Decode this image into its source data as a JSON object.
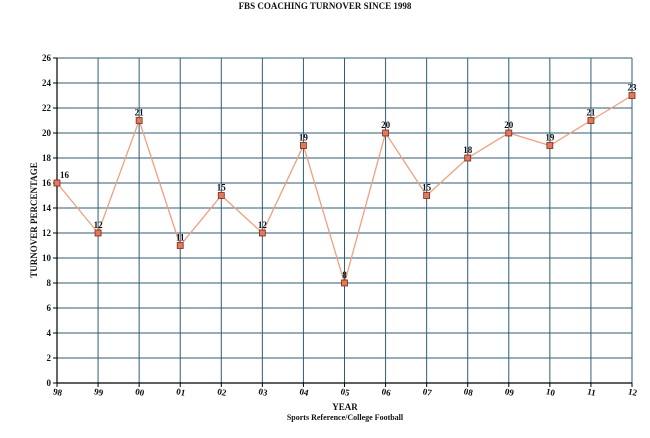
{
  "chart_data": {
    "type": "line",
    "title": "FBS COACHING TURNOVER SINCE 1998",
    "xlabel": "YEAR",
    "ylabel": "TURNOVER PERCENTAGE",
    "source": "Sports Reference/College Football",
    "categories": [
      "98",
      "99",
      "00",
      "01",
      "02",
      "03",
      "04",
      "05",
      "06",
      "07",
      "08",
      "09",
      "10",
      "11",
      "12"
    ],
    "series": [
      {
        "values": [
          16,
          12,
          21,
          11,
          15,
          12,
          19,
          8,
          20,
          15,
          18,
          20,
          19,
          21,
          23
        ]
      }
    ],
    "ylim": [
      0,
      26
    ],
    "y_ticks": [
      0,
      2,
      4,
      6,
      8,
      10,
      12,
      14,
      16,
      18,
      20,
      22,
      24,
      26
    ],
    "grid": true,
    "data_labels": true,
    "colors": {
      "line": "#f0a080",
      "marker_fill": "#e07a5a",
      "marker_stroke": "#7a2a1a",
      "grid": "#2f5e73",
      "axis": "#000000",
      "background": "#ffffff"
    }
  }
}
